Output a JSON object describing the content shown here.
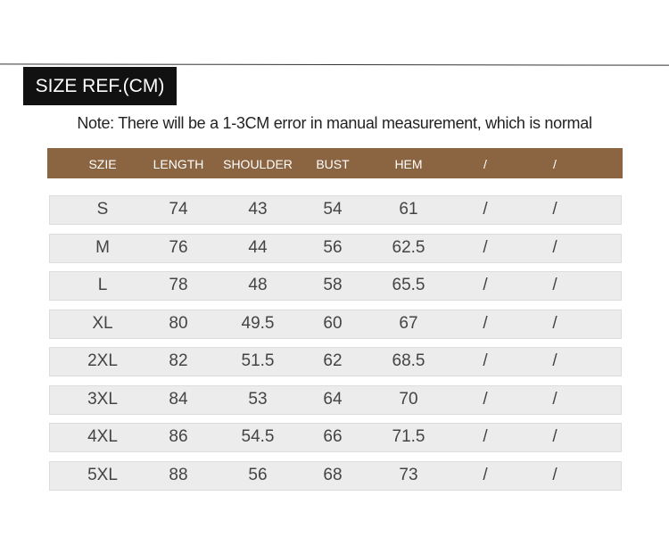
{
  "header": {
    "title": "SIZE REF.(CM)",
    "note": "Note: There will be a 1-3CM error in manual measurement, which is normal"
  },
  "table": {
    "columns": [
      "SZIE",
      "LENGTH",
      "SHOULDER",
      "BUST",
      "HEM",
      "/",
      "/"
    ],
    "rows": [
      [
        "S",
        "74",
        "43",
        "54",
        "61",
        "/",
        "/"
      ],
      [
        "M",
        "76",
        "44",
        "56",
        "62.5",
        "/",
        "/"
      ],
      [
        "L",
        "78",
        "48",
        "58",
        "65.5",
        "/",
        "/"
      ],
      [
        "XL",
        "80",
        "49.5",
        "60",
        "67",
        "/",
        "/"
      ],
      [
        "2XL",
        "82",
        "51.5",
        "62",
        "68.5",
        "/",
        "/"
      ],
      [
        "3XL",
        "84",
        "53",
        "64",
        "70",
        "/",
        "/"
      ],
      [
        "4XL",
        "86",
        "54.5",
        "66",
        "71.5",
        "/",
        "/"
      ],
      [
        "5XL",
        "88",
        "56",
        "68",
        "73",
        "/",
        "/"
      ]
    ]
  }
}
